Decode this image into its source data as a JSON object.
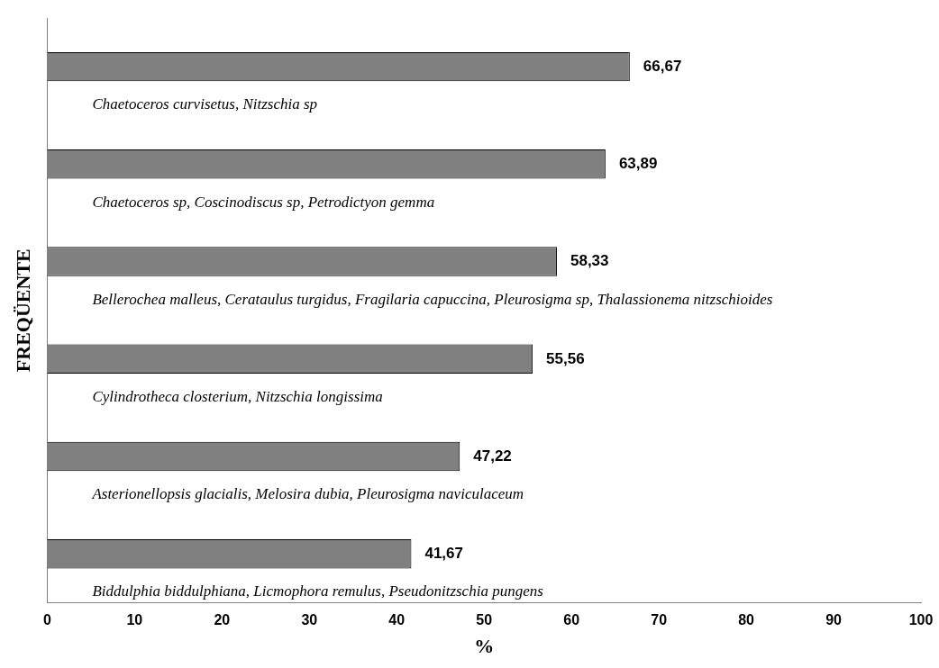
{
  "chart_data": {
    "type": "bar",
    "orientation": "horizontal",
    "categories": [
      "Chaetoceros curvisetus, Nitzschia sp",
      "Chaetoceros sp, Coscinodiscus sp, Petrodictyon gemma",
      "Bellerochea malleus, Cerataulus turgidus, Fragilaria capuccina, Pleurosigma sp, Thalassionema nitzschioides",
      "Cylindrotheca closterium, Nitzschia longissima",
      "Asterionellopsis glacialis, Melosira dubia, Pleurosigma naviculaceum",
      "Biddulphia biddulphiana, Licmophora remulus, Pseudonitzschia pungens"
    ],
    "values": [
      66.67,
      63.89,
      58.33,
      55.56,
      47.22,
      41.67
    ],
    "value_labels": [
      "66,67",
      "63,89",
      "58,33",
      "55,56",
      "47,22",
      "41,67"
    ],
    "color": "#808080",
    "xlim": [
      0,
      100
    ],
    "xticks": [
      0,
      10,
      20,
      30,
      40,
      50,
      60,
      70,
      80,
      90,
      100
    ],
    "xlabel": "%",
    "ylabel": "FREQÜENTE"
  }
}
